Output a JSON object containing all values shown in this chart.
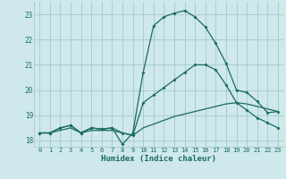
{
  "xlabel": "Humidex (Indice chaleur)",
  "bg_color": "#cee8ec",
  "grid_color": "#aacdd4",
  "line_color": "#1a6b5e",
  "xlim": [
    -0.5,
    23.5
  ],
  "ylim": [
    17.75,
    23.5
  ],
  "yticks": [
    18,
    19,
    20,
    21,
    22,
    23
  ],
  "xticks": [
    0,
    1,
    2,
    3,
    4,
    5,
    6,
    7,
    8,
    9,
    10,
    11,
    12,
    13,
    14,
    15,
    16,
    17,
    18,
    19,
    20,
    21,
    22,
    23
  ],
  "curve1_x": [
    0,
    1,
    2,
    3,
    4,
    5,
    6,
    7,
    8,
    9,
    10,
    11,
    12,
    13,
    14,
    15,
    16,
    17,
    18,
    19,
    20,
    21,
    22,
    23
  ],
  "curve1_y": [
    18.3,
    18.3,
    18.5,
    18.6,
    18.3,
    18.5,
    18.45,
    18.5,
    17.85,
    18.3,
    20.7,
    22.55,
    22.9,
    23.05,
    23.15,
    22.9,
    22.5,
    21.85,
    21.05,
    20.0,
    19.9,
    19.55,
    19.1,
    19.15
  ],
  "curve2_x": [
    0,
    1,
    2,
    3,
    4,
    5,
    6,
    7,
    8,
    9,
    10,
    11,
    12,
    13,
    14,
    15,
    16,
    17,
    18,
    19,
    20,
    21,
    22,
    23
  ],
  "curve2_y": [
    18.3,
    18.3,
    18.5,
    18.6,
    18.3,
    18.5,
    18.45,
    18.5,
    18.3,
    18.2,
    19.5,
    19.8,
    20.1,
    20.4,
    20.7,
    21.0,
    21.0,
    20.8,
    20.2,
    19.5,
    19.2,
    18.9,
    18.7,
    18.5
  ],
  "curve3_x": [
    0,
    1,
    2,
    3,
    4,
    5,
    6,
    7,
    8,
    9,
    10,
    11,
    12,
    13,
    14,
    15,
    16,
    17,
    18,
    19,
    20,
    21,
    22,
    23
  ],
  "curve3_y": [
    18.3,
    18.3,
    18.4,
    18.5,
    18.3,
    18.4,
    18.4,
    18.4,
    18.3,
    18.2,
    18.5,
    18.65,
    18.8,
    18.95,
    19.05,
    19.15,
    19.25,
    19.35,
    19.45,
    19.5,
    19.45,
    19.35,
    19.25,
    19.15
  ]
}
